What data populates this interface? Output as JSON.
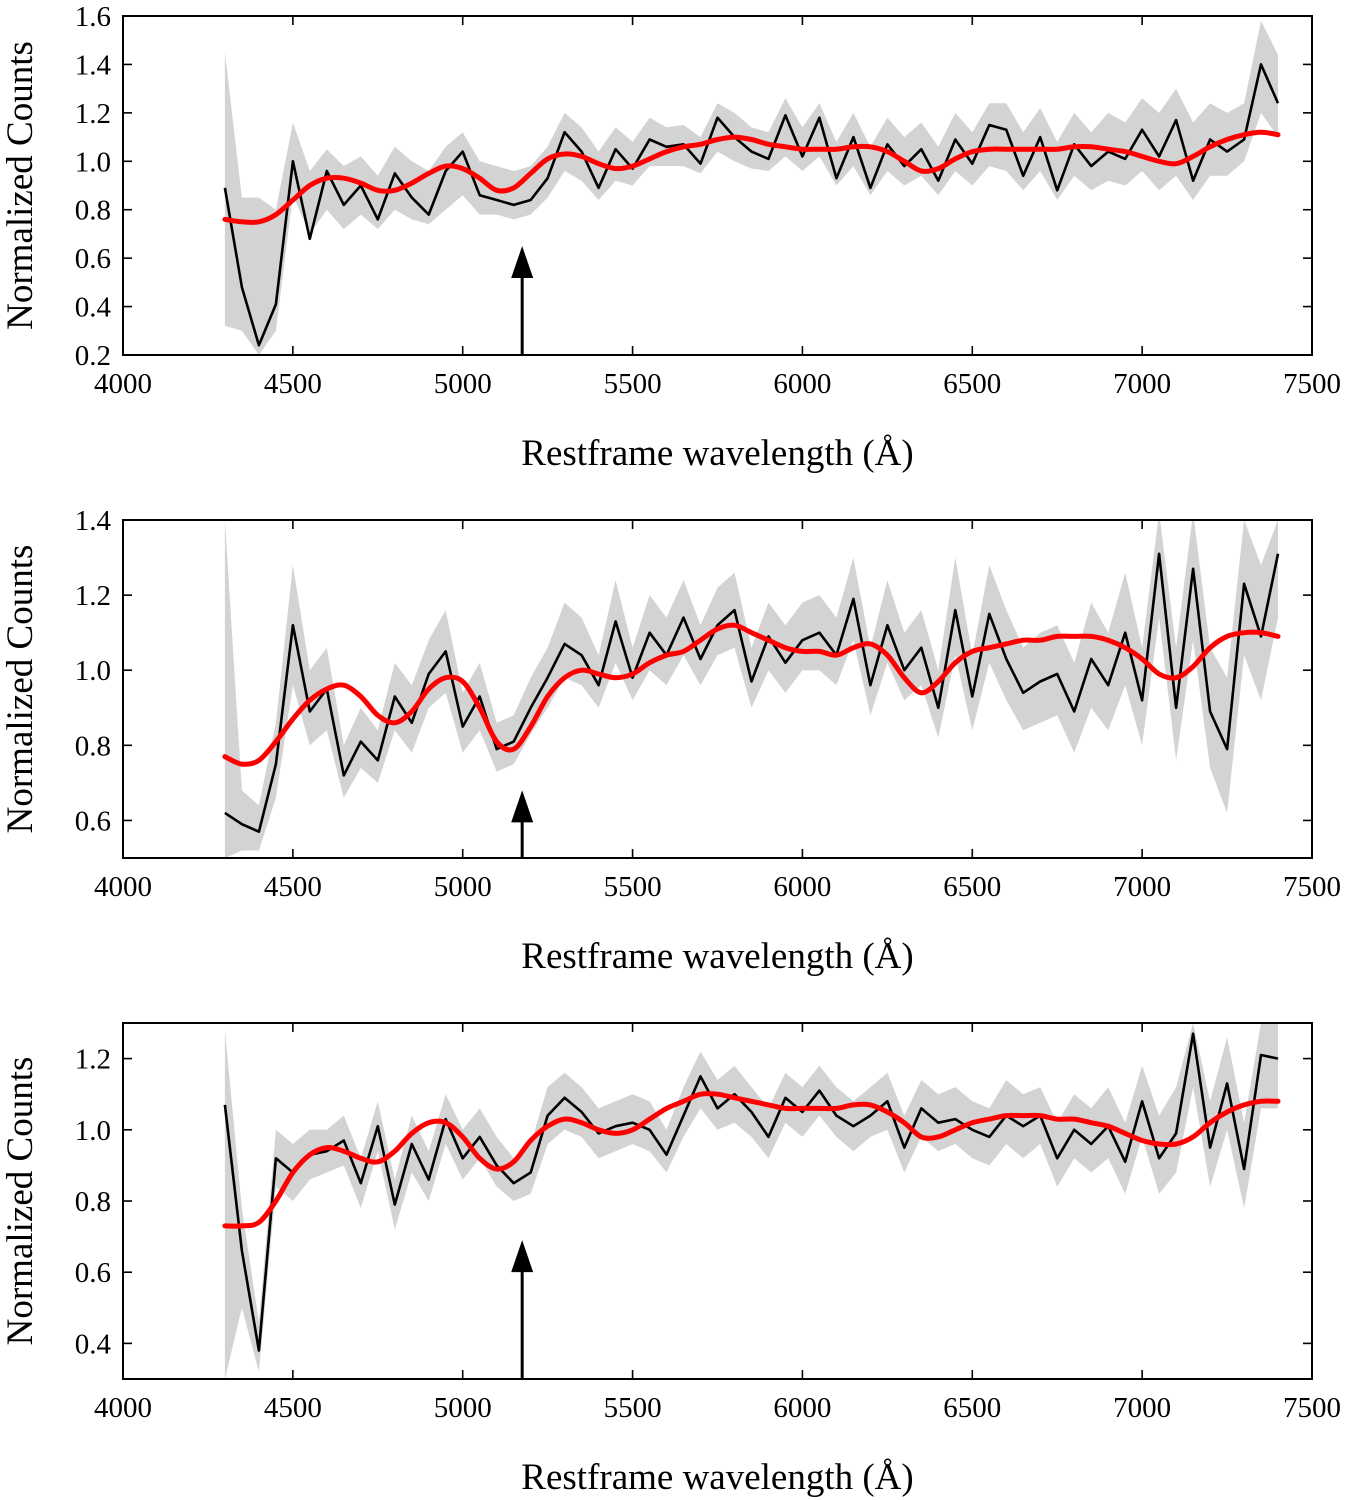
{
  "chart_data": [
    {
      "type": "line",
      "xlabel": "Restframe wavelength (Å)",
      "ylabel": "Normalized Counts",
      "xlim": [
        4000,
        7500
      ],
      "ylim": [
        0.2,
        1.6
      ],
      "xticks": [
        4000,
        4500,
        5000,
        5500,
        6000,
        6500,
        7000,
        7500
      ],
      "yticks": [
        0.2,
        0.4,
        0.6,
        0.8,
        1.0,
        1.2,
        1.4,
        1.6
      ],
      "ytick_labels": [
        "0.2",
        "0.4",
        "0.6",
        "0.8",
        "1.0",
        "1.2",
        "1.4",
        "1.6"
      ],
      "grid": false,
      "arrow_x": 5175,
      "arrow_tip_y": 0.65,
      "band_colour": "#d3d3d3",
      "observed_colour": "#000000",
      "model_colour": "#ff0000",
      "x": [
        4300,
        4350,
        4400,
        4450,
        4500,
        4550,
        4600,
        4650,
        4700,
        4750,
        4800,
        4850,
        4900,
        4950,
        5000,
        5050,
        5100,
        5150,
        5200,
        5250,
        5300,
        5350,
        5400,
        5450,
        5500,
        5550,
        5600,
        5650,
        5700,
        5750,
        5800,
        5850,
        5900,
        5950,
        6000,
        6050,
        6100,
        6150,
        6200,
        6250,
        6300,
        6350,
        6400,
        6450,
        6500,
        6550,
        6600,
        6650,
        6700,
        6750,
        6800,
        6850,
        6900,
        6950,
        7000,
        7050,
        7100,
        7150,
        7200,
        7250,
        7300,
        7350,
        7400
      ],
      "observed": [
        0.89,
        0.48,
        0.24,
        0.41,
        1.0,
        0.68,
        0.96,
        0.82,
        0.9,
        0.76,
        0.95,
        0.85,
        0.78,
        0.96,
        1.04,
        0.86,
        0.84,
        0.82,
        0.84,
        0.93,
        1.12,
        1.04,
        0.89,
        1.05,
        0.97,
        1.09,
        1.06,
        1.07,
        0.99,
        1.18,
        1.1,
        1.04,
        1.01,
        1.19,
        1.02,
        1.18,
        0.93,
        1.1,
        0.89,
        1.07,
        0.98,
        1.05,
        0.92,
        1.09,
        0.99,
        1.15,
        1.13,
        0.94,
        1.1,
        0.88,
        1.07,
        0.98,
        1.04,
        1.01,
        1.13,
        1.02,
        1.17,
        0.92,
        1.09,
        1.04,
        1.09,
        1.4,
        1.24
      ],
      "band_lower": [
        0.32,
        0.3,
        0.2,
        0.3,
        0.86,
        0.7,
        0.8,
        0.72,
        0.78,
        0.72,
        0.8,
        0.76,
        0.74,
        0.8,
        0.86,
        0.78,
        0.78,
        0.76,
        0.78,
        0.85,
        0.96,
        0.92,
        0.84,
        0.92,
        0.9,
        0.98,
        0.98,
        0.98,
        0.95,
        1.04,
        1.0,
        0.97,
        0.96,
        1.02,
        0.96,
        1.02,
        0.9,
        0.98,
        0.86,
        0.96,
        0.9,
        0.94,
        0.86,
        0.96,
        0.9,
        0.98,
        0.96,
        0.88,
        0.96,
        0.84,
        0.94,
        0.88,
        0.92,
        0.9,
        0.96,
        0.88,
        0.94,
        0.84,
        0.94,
        0.94,
        1.0,
        1.2,
        1.1
      ],
      "band_upper": [
        1.45,
        0.85,
        0.85,
        0.8,
        1.16,
        0.96,
        1.05,
        0.98,
        1.02,
        0.94,
        1.06,
        1.0,
        0.96,
        1.06,
        1.12,
        1.0,
        0.98,
        0.96,
        0.98,
        1.06,
        1.2,
        1.14,
        1.04,
        1.14,
        1.08,
        1.18,
        1.14,
        1.15,
        1.1,
        1.24,
        1.2,
        1.14,
        1.12,
        1.26,
        1.14,
        1.24,
        1.08,
        1.2,
        1.06,
        1.18,
        1.1,
        1.16,
        1.06,
        1.2,
        1.12,
        1.24,
        1.24,
        1.12,
        1.22,
        1.08,
        1.2,
        1.12,
        1.2,
        1.16,
        1.26,
        1.2,
        1.3,
        1.16,
        1.24,
        1.2,
        1.24,
        1.58,
        1.44
      ],
      "model": [
        0.76,
        0.75,
        0.75,
        0.78,
        0.84,
        0.9,
        0.93,
        0.93,
        0.91,
        0.88,
        0.88,
        0.91,
        0.95,
        0.98,
        0.97,
        0.93,
        0.88,
        0.89,
        0.95,
        1.01,
        1.03,
        1.02,
        0.99,
        0.97,
        0.98,
        1.01,
        1.04,
        1.06,
        1.07,
        1.09,
        1.1,
        1.09,
        1.07,
        1.06,
        1.05,
        1.05,
        1.05,
        1.06,
        1.06,
        1.04,
        1.0,
        0.96,
        0.97,
        1.01,
        1.04,
        1.05,
        1.05,
        1.05,
        1.05,
        1.05,
        1.06,
        1.06,
        1.05,
        1.04,
        1.02,
        1.0,
        0.99,
        1.02,
        1.06,
        1.09,
        1.11,
        1.12,
        1.11
      ]
    },
    {
      "type": "line",
      "xlabel": "Restframe wavelength (Å)",
      "ylabel": "Normalized Counts",
      "xlim": [
        4000,
        7500
      ],
      "ylim": [
        0.5,
        1.4
      ],
      "xticks": [
        4000,
        4500,
        5000,
        5500,
        6000,
        6500,
        7000,
        7500
      ],
      "yticks": [
        0.6,
        0.8,
        1.0,
        1.2,
        1.4
      ],
      "ytick_labels": [
        "0.6",
        "0.8",
        "1.0",
        "1.2",
        "1.4"
      ],
      "grid": false,
      "arrow_x": 5175,
      "arrow_tip_y": 0.68,
      "band_colour": "#d3d3d3",
      "observed_colour": "#000000",
      "model_colour": "#ff0000",
      "x": [
        4300,
        4350,
        4400,
        4450,
        4500,
        4550,
        4600,
        4650,
        4700,
        4750,
        4800,
        4850,
        4900,
        4950,
        5000,
        5050,
        5100,
        5150,
        5200,
        5250,
        5300,
        5350,
        5400,
        5450,
        5500,
        5550,
        5600,
        5650,
        5700,
        5750,
        5800,
        5850,
        5900,
        5950,
        6000,
        6050,
        6100,
        6150,
        6200,
        6250,
        6300,
        6350,
        6400,
        6450,
        6500,
        6550,
        6600,
        6650,
        6700,
        6750,
        6800,
        6850,
        6900,
        6950,
        7000,
        7050,
        7100,
        7150,
        7200,
        7250,
        7300,
        7350,
        7400
      ],
      "observed": [
        0.62,
        0.59,
        0.57,
        0.75,
        1.12,
        0.89,
        0.95,
        0.72,
        0.81,
        0.76,
        0.93,
        0.86,
        0.99,
        1.05,
        0.85,
        0.93,
        0.79,
        0.81,
        0.9,
        0.98,
        1.07,
        1.04,
        0.96,
        1.13,
        0.98,
        1.1,
        1.04,
        1.14,
        1.03,
        1.12,
        1.16,
        0.97,
        1.09,
        1.02,
        1.08,
        1.1,
        1.04,
        1.19,
        0.96,
        1.12,
        1.0,
        1.06,
        0.9,
        1.16,
        0.93,
        1.15,
        1.03,
        0.94,
        0.97,
        0.99,
        0.89,
        1.03,
        0.96,
        1.1,
        0.92,
        1.31,
        0.9,
        1.27,
        0.89,
        0.79,
        1.23,
        1.09,
        1.31
      ],
      "band_lower": [
        0.5,
        0.52,
        0.52,
        0.66,
        0.96,
        0.8,
        0.84,
        0.66,
        0.74,
        0.7,
        0.84,
        0.78,
        0.9,
        0.94,
        0.78,
        0.84,
        0.73,
        0.75,
        0.83,
        0.9,
        0.98,
        0.96,
        0.9,
        1.02,
        0.92,
        1.0,
        0.96,
        1.04,
        0.96,
        1.04,
        1.06,
        0.9,
        1.0,
        0.94,
        1.0,
        1.0,
        0.96,
        1.08,
        0.88,
        1.02,
        0.92,
        0.96,
        0.82,
        1.04,
        0.84,
        1.02,
        0.92,
        0.84,
        0.86,
        0.88,
        0.78,
        0.9,
        0.84,
        0.96,
        0.8,
        1.14,
        0.76,
        1.08,
        0.74,
        0.62,
        1.04,
        0.92,
        1.14
      ],
      "band_upper": [
        1.4,
        0.68,
        0.64,
        0.86,
        1.28,
        1.0,
        1.06,
        0.8,
        0.9,
        0.84,
        1.02,
        0.96,
        1.08,
        1.16,
        0.94,
        1.02,
        0.86,
        0.88,
        0.98,
        1.06,
        1.18,
        1.14,
        1.04,
        1.24,
        1.06,
        1.2,
        1.14,
        1.24,
        1.12,
        1.22,
        1.26,
        1.06,
        1.18,
        1.12,
        1.18,
        1.2,
        1.14,
        1.3,
        1.06,
        1.24,
        1.1,
        1.16,
        1.0,
        1.3,
        1.04,
        1.28,
        1.16,
        1.06,
        1.1,
        1.12,
        1.02,
        1.18,
        1.1,
        1.26,
        1.06,
        1.42,
        1.06,
        1.42,
        1.06,
        0.98,
        1.4,
        1.28,
        1.4
      ],
      "model": [
        0.77,
        0.75,
        0.76,
        0.81,
        0.87,
        0.92,
        0.95,
        0.96,
        0.93,
        0.88,
        0.86,
        0.89,
        0.95,
        0.98,
        0.97,
        0.9,
        0.81,
        0.79,
        0.85,
        0.93,
        0.98,
        1.0,
        0.99,
        0.98,
        0.99,
        1.02,
        1.04,
        1.05,
        1.08,
        1.11,
        1.12,
        1.1,
        1.08,
        1.06,
        1.05,
        1.05,
        1.04,
        1.06,
        1.07,
        1.04,
        0.98,
        0.94,
        0.97,
        1.02,
        1.05,
        1.06,
        1.07,
        1.08,
        1.08,
        1.09,
        1.09,
        1.09,
        1.08,
        1.06,
        1.03,
        0.99,
        0.98,
        1.01,
        1.06,
        1.09,
        1.1,
        1.1,
        1.09
      ]
    },
    {
      "type": "line",
      "xlabel": "Restframe wavelength (Å)",
      "ylabel": "Normalized Counts",
      "xlim": [
        4000,
        7500
      ],
      "ylim": [
        0.3,
        1.3
      ],
      "xticks": [
        4000,
        4500,
        5000,
        5500,
        6000,
        6500,
        7000,
        7500
      ],
      "yticks": [
        0.4,
        0.6,
        0.8,
        1.0,
        1.2
      ],
      "ytick_labels": [
        "0.4",
        "0.6",
        "0.8",
        "1.0",
        "1.2"
      ],
      "grid": false,
      "arrow_x": 5175,
      "arrow_tip_y": 0.69,
      "band_colour": "#d3d3d3",
      "observed_colour": "#000000",
      "model_colour": "#ff0000",
      "x": [
        4300,
        4350,
        4400,
        4450,
        4500,
        4550,
        4600,
        4650,
        4700,
        4750,
        4800,
        4850,
        4900,
        4950,
        5000,
        5050,
        5100,
        5150,
        5200,
        5250,
        5300,
        5350,
        5400,
        5450,
        5500,
        5550,
        5600,
        5650,
        5700,
        5750,
        5800,
        5850,
        5900,
        5950,
        6000,
        6050,
        6100,
        6150,
        6200,
        6250,
        6300,
        6350,
        6400,
        6450,
        6500,
        6550,
        6600,
        6650,
        6700,
        6750,
        6800,
        6850,
        6900,
        6950,
        7000,
        7050,
        7100,
        7150,
        7200,
        7250,
        7300,
        7350,
        7400
      ],
      "observed": [
        1.07,
        0.66,
        0.38,
        0.92,
        0.88,
        0.93,
        0.94,
        0.97,
        0.85,
        1.01,
        0.79,
        0.96,
        0.86,
        1.03,
        0.92,
        0.98,
        0.9,
        0.85,
        0.88,
        1.04,
        1.09,
        1.05,
        0.99,
        1.01,
        1.02,
        1.0,
        0.93,
        1.04,
        1.15,
        1.06,
        1.1,
        1.05,
        0.98,
        1.09,
        1.05,
        1.11,
        1.04,
        1.01,
        1.04,
        1.08,
        0.95,
        1.06,
        1.02,
        1.03,
        1.0,
        0.98,
        1.04,
        1.01,
        1.04,
        0.92,
        1.0,
        0.96,
        1.01,
        0.91,
        1.08,
        0.92,
        0.99,
        1.27,
        0.95,
        1.13,
        0.89,
        1.21,
        1.2
      ],
      "band_lower": [
        0.3,
        0.5,
        0.32,
        0.84,
        0.8,
        0.86,
        0.88,
        0.9,
        0.78,
        0.94,
        0.72,
        0.88,
        0.8,
        0.96,
        0.86,
        0.92,
        0.84,
        0.8,
        0.82,
        0.96,
        1.0,
        0.98,
        0.92,
        0.94,
        0.96,
        0.94,
        0.88,
        0.98,
        1.06,
        1.0,
        1.02,
        0.98,
        0.92,
        1.02,
        0.98,
        1.04,
        0.98,
        0.94,
        0.98,
        1.0,
        0.88,
        0.98,
        0.94,
        0.96,
        0.92,
        0.9,
        0.96,
        0.92,
        0.96,
        0.84,
        0.92,
        0.88,
        0.92,
        0.82,
        0.98,
        0.82,
        0.88,
        1.12,
        0.84,
        1.0,
        0.78,
        1.06,
        1.06
      ],
      "band_upper": [
        1.28,
        0.78,
        0.46,
        1.0,
        0.96,
        1.0,
        1.0,
        1.04,
        0.92,
        1.08,
        0.86,
        1.04,
        0.94,
        1.1,
        1.0,
        1.06,
        0.98,
        0.92,
        0.96,
        1.12,
        1.16,
        1.12,
        1.06,
        1.08,
        1.1,
        1.08,
        1.0,
        1.12,
        1.22,
        1.14,
        1.18,
        1.12,
        1.06,
        1.16,
        1.12,
        1.18,
        1.12,
        1.08,
        1.12,
        1.16,
        1.04,
        1.14,
        1.1,
        1.12,
        1.08,
        1.06,
        1.14,
        1.1,
        1.12,
        1.02,
        1.1,
        1.06,
        1.12,
        1.02,
        1.18,
        1.04,
        1.12,
        1.3,
        1.08,
        1.26,
        1.02,
        1.3,
        1.3
      ],
      "model": [
        0.73,
        0.73,
        0.74,
        0.8,
        0.88,
        0.93,
        0.95,
        0.94,
        0.92,
        0.91,
        0.94,
        0.99,
        1.02,
        1.02,
        0.98,
        0.92,
        0.89,
        0.91,
        0.97,
        1.01,
        1.03,
        1.02,
        1.0,
        0.99,
        1.0,
        1.03,
        1.06,
        1.08,
        1.1,
        1.1,
        1.09,
        1.08,
        1.07,
        1.06,
        1.06,
        1.06,
        1.06,
        1.07,
        1.07,
        1.05,
        1.02,
        0.98,
        0.98,
        1.0,
        1.02,
        1.03,
        1.04,
        1.04,
        1.04,
        1.03,
        1.03,
        1.02,
        1.01,
        0.99,
        0.97,
        0.96,
        0.96,
        0.98,
        1.02,
        1.05,
        1.07,
        1.08,
        1.08
      ]
    }
  ]
}
